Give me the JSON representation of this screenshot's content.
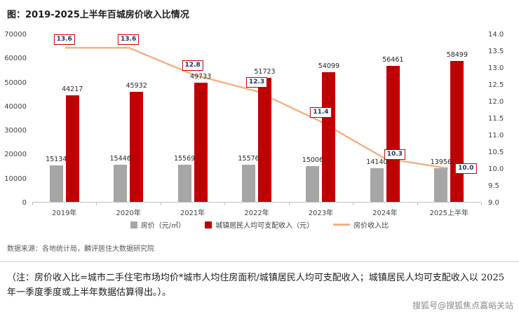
{
  "title": "图：2019-2025上半年百城房价收入比情况",
  "source": "数据来源：各地统计局，麟评居住大数据研究院",
  "note": "（注：房价收入比=城市二手住宅市场均价*城市人均住房面积/城镇居民人均可支配收入；城镇居民人均可支配收入以 2025 年一季度季度或上半年数据估算得出。）。",
  "watermark": "搜狐号@搜狐焦点嘉峪关站",
  "chart_data": {
    "type": "combo",
    "categories": [
      "2019年",
      "2020年",
      "2021年",
      "2022年",
      "2023年",
      "2024年",
      "2025上半年"
    ],
    "bar_series": [
      {
        "name": "房价（元/㎡）",
        "color": "#a6a6a6",
        "values": [
          15134,
          15446,
          15569,
          15576,
          15006,
          14140,
          13956
        ]
      },
      {
        "name": "城镇居民人均可支配收入（元）",
        "color": "#c00000",
        "values": [
          44217,
          45932,
          49733,
          51723,
          54099,
          56461,
          58499
        ]
      }
    ],
    "line_series": {
      "name": "房价收入比",
      "color": "#f4b183",
      "values": [
        13.6,
        13.6,
        12.8,
        12.3,
        11.4,
        10.3,
        10.0
      ]
    },
    "left_axis": {
      "min": 0,
      "max": 70000,
      "step": 10000
    },
    "right_axis": {
      "min": 9.0,
      "max": 14.0,
      "step": 0.5
    },
    "grid": false,
    "legend_position": "bottom"
  }
}
